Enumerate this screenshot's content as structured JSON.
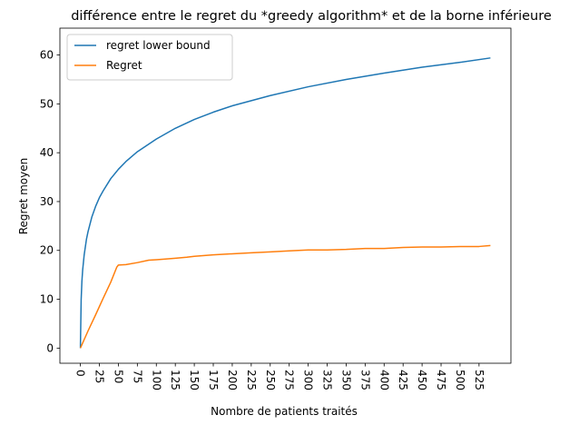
{
  "chart_data": {
    "type": "line",
    "title": "différence entre le regret du *greedy algorithm* et de la borne inférieure",
    "xlabel": "Nombre de patients traités",
    "ylabel": "Regret moyen",
    "xlim": [
      -27,
      567
    ],
    "ylim": [
      -3.1,
      65.5
    ],
    "xticks": [
      0,
      25,
      50,
      75,
      100,
      125,
      150,
      175,
      200,
      225,
      250,
      275,
      300,
      325,
      350,
      375,
      400,
      425,
      450,
      475,
      500,
      525
    ],
    "xtick_labels": [
      "0",
      "25",
      "50",
      "75",
      "100",
      "125",
      "150",
      "175",
      "200",
      "225",
      "250",
      "275",
      "300",
      "325",
      "350",
      "375",
      "400",
      "425",
      "450",
      "475",
      "500",
      "525"
    ],
    "yticks": [
      0,
      10,
      20,
      30,
      40,
      50,
      60
    ],
    "ytick_labels": [
      "0",
      "10",
      "20",
      "30",
      "40",
      "50",
      "60"
    ],
    "grid": false,
    "legend_position": "top-left",
    "series": [
      {
        "name": "regret lower bound",
        "color": "#1f77b4",
        "x": [
          0,
          1,
          2,
          3,
          5,
          8,
          10,
          15,
          20,
          25,
          30,
          40,
          50,
          60,
          75,
          100,
          125,
          150,
          175,
          200,
          250,
          300,
          350,
          400,
          450,
          500,
          540
        ],
        "y": [
          0,
          9.9,
          13.7,
          16.0,
          19.1,
          22.3,
          23.8,
          26.8,
          29.0,
          30.8,
          32.2,
          34.7,
          36.6,
          38.2,
          40.2,
          42.8,
          45.0,
          46.8,
          48.3,
          49.6,
          51.7,
          53.5,
          55.0,
          56.3,
          57.5,
          58.5,
          59.4
        ]
      },
      {
        "name": "Regret",
        "color": "#ff7f0e",
        "x": [
          0,
          10,
          20,
          30,
          40,
          48,
          50,
          60,
          75,
          90,
          100,
          110,
          125,
          140,
          150,
          175,
          200,
          225,
          250,
          275,
          300,
          325,
          350,
          375,
          400,
          425,
          450,
          475,
          500,
          525,
          540
        ],
        "y": [
          0,
          3.5,
          6.8,
          10.2,
          13.5,
          16.6,
          17.0,
          17.1,
          17.5,
          18.0,
          18.1,
          18.2,
          18.4,
          18.6,
          18.8,
          19.1,
          19.3,
          19.5,
          19.7,
          19.9,
          20.1,
          20.1,
          20.2,
          20.4,
          20.4,
          20.6,
          20.7,
          20.7,
          20.8,
          20.8,
          21.0
        ]
      }
    ]
  }
}
